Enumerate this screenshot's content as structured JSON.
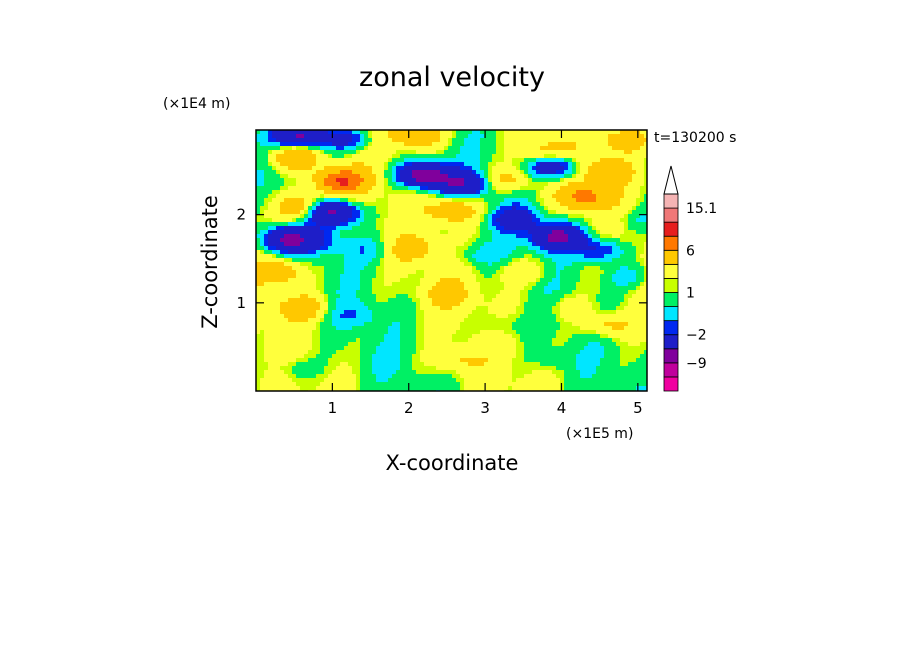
{
  "chart_data": {
    "type": "heatmap",
    "title": "zonal velocity",
    "xlabel": "X-coordinate",
    "ylabel": "Z-coordinate",
    "x_unit": "(×1E5 m)",
    "y_unit": "(×1E4 m)",
    "time_label": "t=130200 s",
    "xlim": [
      0,
      5.12
    ],
    "ylim": [
      0,
      2.96
    ],
    "x_ticks": [
      "1",
      "2",
      "3",
      "4",
      "5"
    ],
    "y_ticks": [
      "1",
      "2"
    ],
    "colorbar": {
      "levels": [
        -15,
        -12,
        -9,
        -6,
        -2,
        -1,
        0,
        1,
        1.5,
        3,
        6,
        9,
        12,
        15.1
      ],
      "labels": [
        "15.1",
        "6",
        "1",
        "−2",
        "−9"
      ],
      "colors": [
        "#f000a0",
        "#c0009c",
        "#80009c",
        "#1e1ec8",
        "#0028f0",
        "#00e6ff",
        "#00f064",
        "#c8ff00",
        "#ffff3c",
        "#ffc800",
        "#ff7800",
        "#e61e1e",
        "#f07878",
        "#f5b4b4"
      ]
    },
    "features": [
      {
        "x": 0.5,
        "z": 2.65,
        "u": 5
      },
      {
        "x": 0.55,
        "z": 2.0,
        "u": 2
      },
      {
        "x": 1.1,
        "z": 2.38,
        "u": 8
      },
      {
        "x": 0.6,
        "z": 2.12,
        "u": 3.5
      },
      {
        "x": 1.0,
        "z": 2.02,
        "u": -8
      },
      {
        "x": 0.4,
        "z": 1.72,
        "u": -7
      },
      {
        "x": 0.8,
        "z": 1.7,
        "u": -2.5
      },
      {
        "x": 1.5,
        "z": 1.6,
        "u": -1.5
      },
      {
        "x": 0.6,
        "z": 2.9,
        "u": -8
      },
      {
        "x": 1.2,
        "z": 2.85,
        "u": -4
      },
      {
        "x": 2.1,
        "z": 2.9,
        "u": 5
      },
      {
        "x": 2.2,
        "z": 2.45,
        "u": -10
      },
      {
        "x": 2.7,
        "z": 2.35,
        "u": -6
      },
      {
        "x": 3.3,
        "z": 2.4,
        "u": 3
      },
      {
        "x": 2.6,
        "z": 2.05,
        "u": 4
      },
      {
        "x": 3.4,
        "z": 1.95,
        "u": -4
      },
      {
        "x": 3.9,
        "z": 2.55,
        "u": -6
      },
      {
        "x": 4.3,
        "z": 2.2,
        "u": 5.5
      },
      {
        "x": 3.8,
        "z": 2.7,
        "u": 3
      },
      {
        "x": 4.6,
        "z": 2.5,
        "u": 4
      },
      {
        "x": 3.95,
        "z": 1.75,
        "u": -8
      },
      {
        "x": 4.5,
        "z": 1.6,
        "u": -4
      },
      {
        "x": 4.85,
        "z": 2.85,
        "u": 4
      },
      {
        "x": 5.0,
        "z": 1.95,
        "u": -1.5
      },
      {
        "x": 4.9,
        "z": 1.3,
        "u": -2
      },
      {
        "x": 4.6,
        "z": 0.75,
        "u": 3
      },
      {
        "x": 3.5,
        "z": 1.35,
        "u": 1.8
      },
      {
        "x": 2.5,
        "z": 1.1,
        "u": 2.2
      },
      {
        "x": 1.3,
        "z": 0.85,
        "u": -1.5
      },
      {
        "x": 0.6,
        "z": 0.95,
        "u": 3.5
      },
      {
        "x": 0.3,
        "z": 1.35,
        "u": 4
      },
      {
        "x": 0.5,
        "z": 0.25,
        "u": -1.5
      },
      {
        "x": 1.6,
        "z": 0.35,
        "u": -0.5
      },
      {
        "x": 3.2,
        "z": 0.75,
        "u": -1.2
      },
      {
        "x": 3.9,
        "z": 0.35,
        "u": -1
      },
      {
        "x": 2.6,
        "z": 0.35,
        "u": 2
      },
      {
        "x": 4.1,
        "z": 0.95,
        "u": 1.5
      },
      {
        "x": 2.05,
        "z": 1.6,
        "u": 2.5
      },
      {
        "x": 2.9,
        "z": 1.55,
        "u": -1.8
      }
    ]
  }
}
